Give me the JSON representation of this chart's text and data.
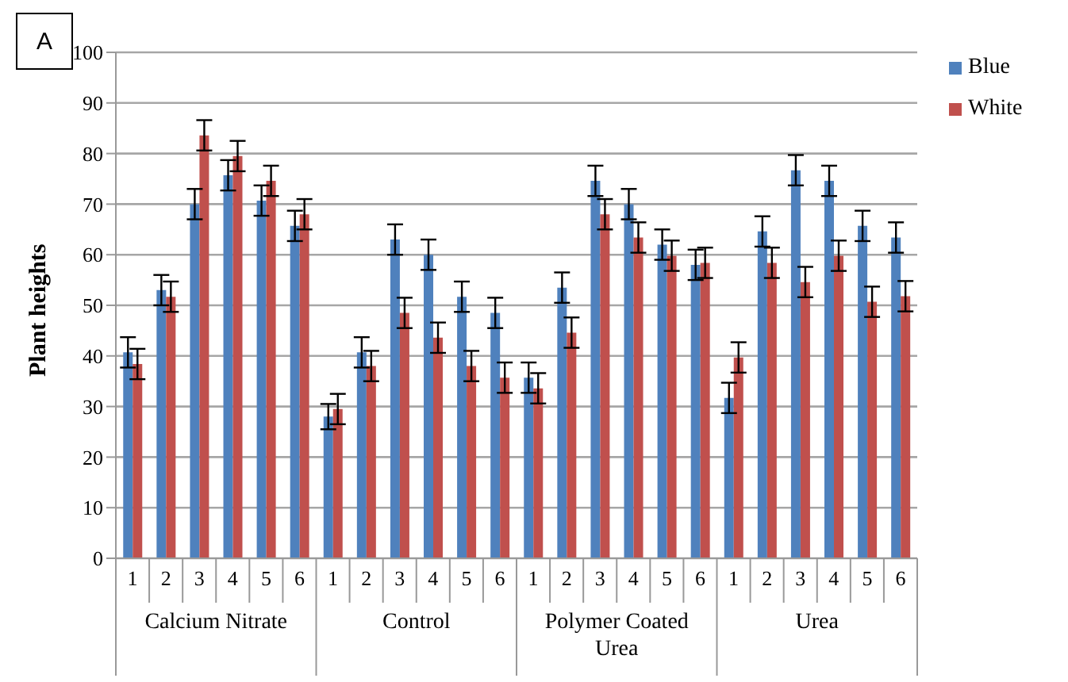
{
  "chart_data": {
    "type": "bar",
    "ylabel": "Plant heights",
    "categories": [
      "1",
      "2",
      "3",
      "4",
      "5",
      "6",
      "1",
      "2",
      "3",
      "4",
      "5",
      "6",
      "1",
      "2",
      "3",
      "4",
      "5",
      "6",
      "1",
      "2",
      "3",
      "4",
      "5",
      "6"
    ],
    "annotations": [
      "A",
      "Calcium Nitrate",
      "Control",
      "Polymer Coated Urea",
      "Urea"
    ],
    "series": [
      {
        "name": "Blue",
        "color": "#4f81bd",
        "values": [
          40.7,
          53,
          70,
          75.7,
          70.7,
          65.7,
          28,
          40.7,
          63,
          60,
          51.7,
          48.5,
          35.7,
          53.5,
          74.6,
          70,
          62,
          58,
          31.7,
          64.6,
          76.7,
          74.6,
          65.7,
          63.4
        ],
        "errors": [
          3,
          3,
          3,
          3,
          3,
          3,
          2.5,
          3,
          3,
          3,
          3,
          3,
          3,
          3,
          3,
          3,
          3,
          3,
          3,
          3,
          3,
          3,
          3,
          3
        ]
      },
      {
        "name": "White",
        "color": "#c0504d",
        "values": [
          38.4,
          51.7,
          83.6,
          79.5,
          74.6,
          68,
          29.5,
          38,
          48.5,
          43.6,
          38,
          35.7,
          33.6,
          44.6,
          68,
          63.4,
          59.8,
          58.4,
          39.7,
          58.4,
          54.6,
          59.8,
          50.7,
          51.8
        ],
        "errors": [
          3,
          3,
          3,
          3,
          3,
          3,
          3,
          3,
          3,
          3,
          3,
          3,
          3,
          3,
          3,
          3,
          3,
          3,
          3,
          3,
          3,
          3,
          3,
          3
        ]
      }
    ],
    "ylim": [
      0,
      100
    ],
    "yticks": [
      0,
      10,
      20,
      30,
      40,
      50,
      60,
      70,
      80,
      90,
      100
    ],
    "grid": "y",
    "legend": "top right"
  }
}
